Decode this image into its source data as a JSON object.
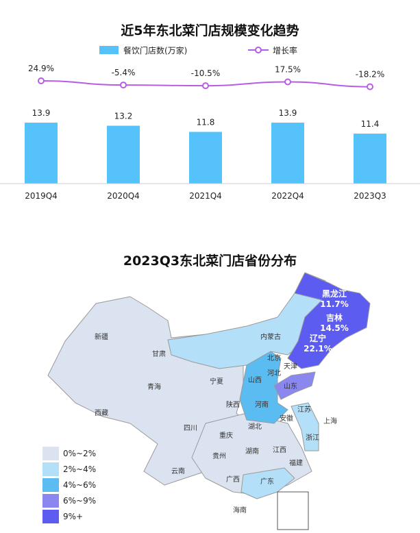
{
  "chart_data": [
    {
      "type": "bar",
      "title": "近5年东北菜门店规模变化趋势",
      "categories": [
        "2019Q4",
        "2020Q4",
        "2021Q4",
        "2022Q4",
        "2023Q3"
      ],
      "series": [
        {
          "name": "餐饮门店数(万家)",
          "type": "bar",
          "values": [
            13.9,
            13.2,
            11.8,
            13.9,
            11.4
          ],
          "labels": [
            "13.9",
            "13.2",
            "11.8",
            "13.9",
            "11.4"
          ],
          "color": "#56c2fb"
        },
        {
          "name": "增长率",
          "type": "line",
          "values": [
            24.9,
            -5.4,
            -10.5,
            17.5,
            -18.2
          ],
          "labels": [
            "24.9%",
            "-5.4%",
            "-10.5%",
            "17.5%",
            "-18.2%"
          ],
          "color": "#b55ce6"
        }
      ]
    },
    {
      "type": "map",
      "title": "2023Q3东北菜门店省份分布",
      "highlighted": [
        {
          "name": "黑龙江",
          "value": "11.7%"
        },
        {
          "name": "吉林",
          "value": "14.5%"
        },
        {
          "name": "辽宁",
          "value": "22.1%"
        }
      ],
      "provinces": [
        "新疆",
        "西藏",
        "青海",
        "甘肃",
        "内蒙古",
        "宁夏",
        "陕西",
        "四川",
        "重庆",
        "云南",
        "贵州",
        "湖北",
        "湖南",
        "广西",
        "广东",
        "海南",
        "江西",
        "福建",
        "浙江",
        "上海",
        "江苏",
        "安徽",
        "河南",
        "山西",
        "河北",
        "北京",
        "天津",
        "山东"
      ],
      "legend": [
        {
          "label": "0%~2%",
          "color": "#dbe3f1"
        },
        {
          "label": "2%~4%",
          "color": "#b4dff8"
        },
        {
          "label": "4%~6%",
          "color": "#5bbcf2"
        },
        {
          "label": "6%~9%",
          "color": "#8a88ef"
        },
        {
          "label": "9%+",
          "color": "#5c5cf0"
        }
      ]
    }
  ]
}
